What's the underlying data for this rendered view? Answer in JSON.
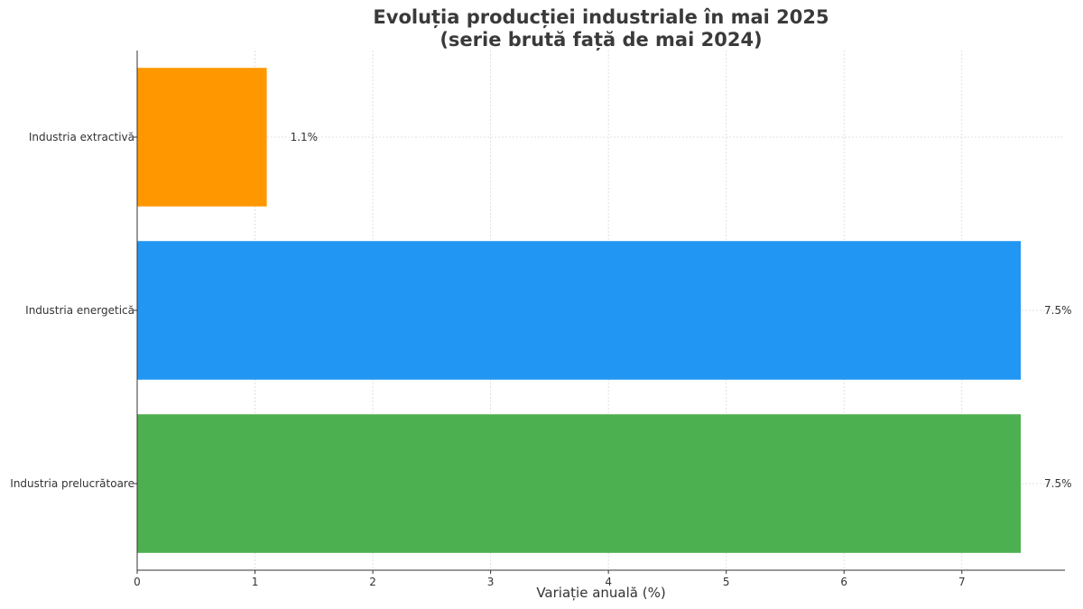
{
  "chart_data": {
    "type": "bar",
    "orientation": "horizontal",
    "title_line_1": "Evoluția producției industriale în mai 2025",
    "title_line_2": "(serie brută față de mai 2024)",
    "xlabel": "Variație anuală (%)",
    "ylabel": "",
    "categories": [
      "Industria extractivă",
      "Industria energetică",
      "Industria prelucrătoare"
    ],
    "values": [
      1.1,
      7.5,
      7.5
    ],
    "data_labels": [
      "1.1%",
      "7.5%",
      "7.5%"
    ],
    "colors": [
      "#ff9800",
      "#2196f3",
      "#4caf50"
    ],
    "x_ticks": [
      0,
      1,
      2,
      3,
      4,
      5,
      6,
      7
    ],
    "xlim": [
      0,
      7.875
    ],
    "grid": true,
    "legend": "none"
  }
}
